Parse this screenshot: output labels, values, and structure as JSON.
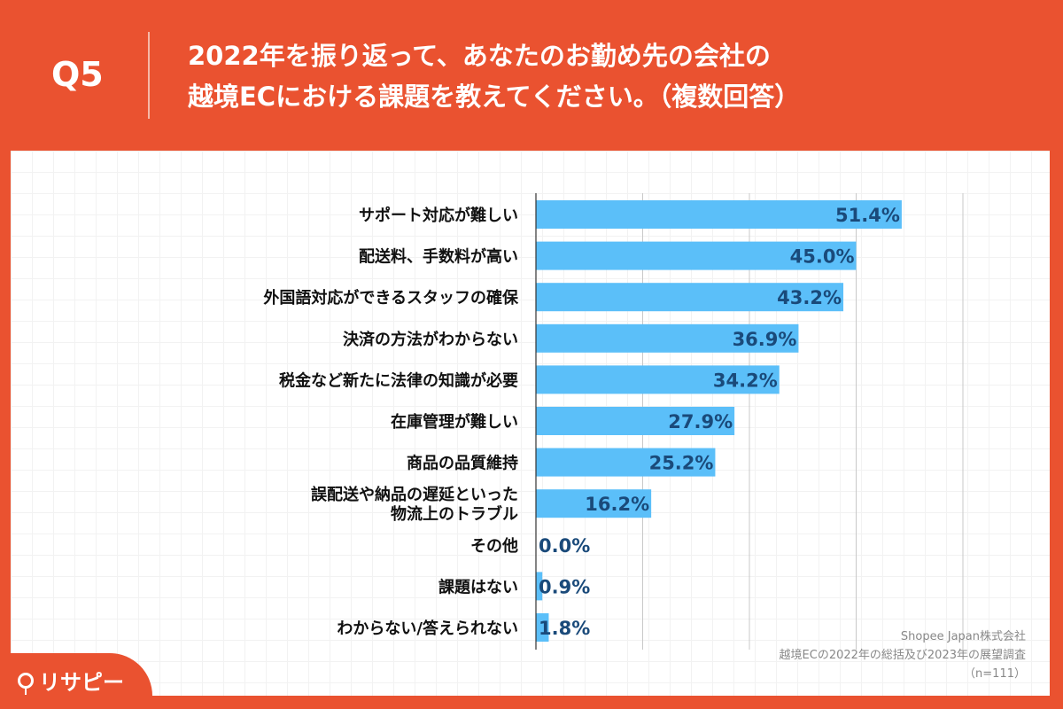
{
  "header": {
    "q_label": "Q5",
    "title": "2022年を振り返って、あなたのお勤め先の会社の\n越境ECにおける課題を教えてください。（複数回答）"
  },
  "source": {
    "company": "Shopee Japan株式会社",
    "survey": "越境ECの2022年の総括及び2023年の展望調査",
    "n": "（n=111）"
  },
  "logo": {
    "text": "リサピー"
  },
  "colors": {
    "background": "#ea5230",
    "bar": "#5bbff9",
    "value_label": "#1a4a7a"
  },
  "chart_data": {
    "type": "bar",
    "orientation": "horizontal",
    "categories": [
      "サポート対応が難しい",
      "配送料、手数料が高い",
      "外国語対応ができるスタッフの確保",
      "決済の方法がわからない",
      "税金など新たに法律の知識が必要",
      "在庫管理が難しい",
      "商品の品質維持",
      "誤配送や納品の遅延といった\n物流上のトラブル",
      "その他",
      "課題はない",
      "わからない/答えられない"
    ],
    "values": [
      51.4,
      45.0,
      43.2,
      36.9,
      34.2,
      27.9,
      25.2,
      16.2,
      0.0,
      0.9,
      1.8
    ],
    "value_labels": [
      "51.4%",
      "45.0%",
      "43.2%",
      "36.9%",
      "34.2%",
      "27.9%",
      "25.2%",
      "16.2%",
      "0.0%",
      "0.9%",
      "1.8%"
    ],
    "xlim": [
      0,
      60
    ],
    "grid_step": 15,
    "grid": true,
    "unit": "%"
  }
}
